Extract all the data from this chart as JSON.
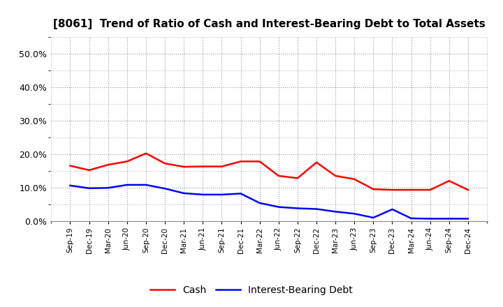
{
  "title": "[8061]  Trend of Ratio of Cash and Interest-Bearing Debt to Total Assets",
  "x_labels": [
    "Sep-19",
    "Dec-19",
    "Mar-20",
    "Jun-20",
    "Sep-20",
    "Dec-20",
    "Mar-21",
    "Jun-21",
    "Sep-21",
    "Dec-21",
    "Mar-22",
    "Jun-22",
    "Sep-22",
    "Dec-22",
    "Mar-23",
    "Jun-23",
    "Sep-23",
    "Dec-23",
    "Mar-24",
    "Jun-24",
    "Sep-24",
    "Dec-24"
  ],
  "cash": [
    0.165,
    0.152,
    0.168,
    0.178,
    0.202,
    0.172,
    0.162,
    0.163,
    0.163,
    0.178,
    0.178,
    0.135,
    0.128,
    0.175,
    0.135,
    0.125,
    0.095,
    0.093,
    0.093,
    0.093,
    0.12,
    0.093
  ],
  "ibd": [
    0.106,
    0.098,
    0.099,
    0.108,
    0.108,
    0.097,
    0.083,
    0.079,
    0.079,
    0.082,
    0.054,
    0.042,
    0.038,
    0.036,
    0.028,
    0.022,
    0.01,
    0.035,
    0.008,
    0.007,
    0.007,
    0.007
  ],
  "cash_color": "#ff0000",
  "ibd_color": "#0000ff",
  "ylim": [
    0.0,
    0.55
  ],
  "yticks": [
    0.0,
    0.1,
    0.2,
    0.3,
    0.4,
    0.5
  ],
  "ytick_labels": [
    "0.0%",
    "10.0%",
    "20.0%",
    "30.0%",
    "40.0%",
    "50.0%"
  ],
  "background_color": "#ffffff",
  "plot_bg_color": "#ffffff",
  "grid_color": "#999999",
  "title_fontsize": 11,
  "legend_cash": "Cash",
  "legend_ibd": "Interest-Bearing Debt",
  "line_width": 1.8
}
